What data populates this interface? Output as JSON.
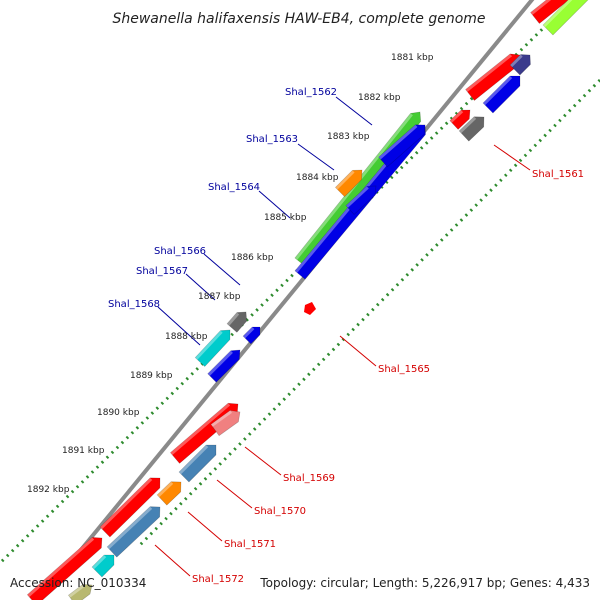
{
  "title": "Shewanella halifaxensis HAW-EB4, complete genome",
  "footer": {
    "accession": "Accession: NC_010334",
    "topology": "Topology: circular; Length: 5,226,917 bp; Genes: 4,433"
  },
  "scale_labels": [
    "1881 kbp",
    "1882 kbp",
    "1883 kbp",
    "1884 kbp",
    "1885 kbp",
    "1886 kbp",
    "1887 kbp",
    "1888 kbp",
    "1889 kbp",
    "1890 kbp",
    "1891 kbp",
    "1892 kbp"
  ],
  "gene_labels_plus": [
    "Shal_1562",
    "Shal_1563",
    "Shal_1564",
    "Shal_1566",
    "Shal_1567",
    "Shal_1568"
  ],
  "gene_labels_minus": [
    "Shal_1561",
    "Shal_1565",
    "Shal_1569",
    "Shal_1570",
    "Shal_1571",
    "Shal_1572"
  ],
  "colors": {
    "plus_label": "#00009c",
    "minus_label": "#d40000",
    "backbone": "#8a8a8a",
    "dotted_track": "#2e8b2e",
    "red": "#ff0000",
    "blue": "#0000e6",
    "green": "#44cc33",
    "orange": "#ff8800",
    "cyan": "#00cccc",
    "gray": "#666666",
    "steelblue": "#4682b4",
    "navy": "#3a3a8c",
    "pink": "#f08080",
    "lime": "#99ff33",
    "olive": "#b8b870"
  }
}
